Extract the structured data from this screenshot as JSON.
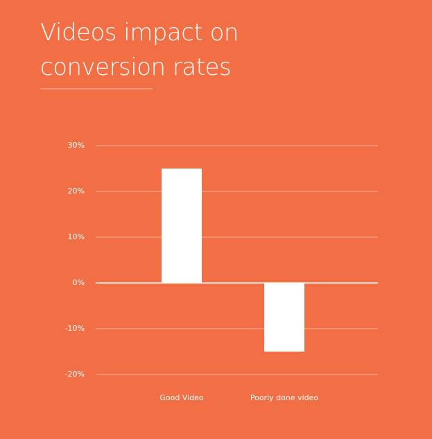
{
  "chart_data": {
    "type": "bar",
    "title": "Videos impact on conversion rates",
    "categories": [
      "Good Video",
      "Poorly done video"
    ],
    "values": [
      25,
      -15
    ],
    "color": "#ffffff",
    "ylim": [
      -20,
      30
    ],
    "yticks": [
      {
        "value": -20,
        "label": "-20%"
      },
      {
        "value": -10,
        "label": "-10%"
      },
      {
        "value": 0,
        "label": "0%"
      },
      {
        "value": 10,
        "label": "10%"
      },
      {
        "value": 20,
        "label": "20%"
      },
      {
        "value": 30,
        "label": "30%"
      }
    ],
    "grid": true
  }
}
